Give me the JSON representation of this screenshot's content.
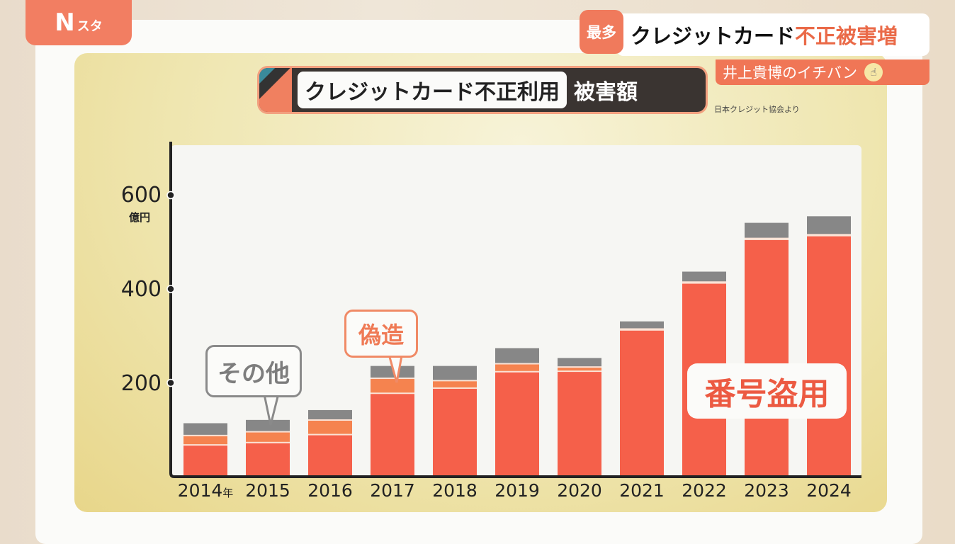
{
  "broadcast": {
    "logo": {
      "main": "N",
      "sub": "スタ"
    },
    "badge": "最多",
    "headline": {
      "black": "クレジットカード",
      "accent": "不正被害増"
    },
    "corner": {
      "label": "井上貴博のイチバン",
      "icon": "pointing-hand-icon"
    }
  },
  "chart_data": {
    "type": "bar",
    "stacked": true,
    "title": {
      "main": "クレジットカード不正利用",
      "sub": "被害額"
    },
    "source": "日本クレジット協会より",
    "categories": [
      "2014",
      "2015",
      "2016",
      "2017",
      "2018",
      "2019",
      "2020",
      "2021",
      "2022",
      "2023",
      "2024"
    ],
    "year_suffix": "年",
    "yunit": "億円",
    "ylim": [
      0,
      650
    ],
    "yticks": [
      200,
      400,
      600
    ],
    "grid": false,
    "series": [
      {
        "name": "番号盗用",
        "color": "#f5604a",
        "values": [
          67,
          72,
          89,
          177,
          188,
          223,
          224,
          312,
          412,
          505,
          513
        ]
      },
      {
        "name": "偽造",
        "color": "#f5834f",
        "values": [
          20,
          23,
          31,
          32,
          16,
          17,
          9,
          2,
          2,
          2,
          2
        ]
      },
      {
        "name": "その他",
        "color": "#878787",
        "values": [
          27,
          26,
          22,
          27,
          32,
          34,
          20,
          17,
          23,
          34,
          40
        ]
      }
    ]
  }
}
